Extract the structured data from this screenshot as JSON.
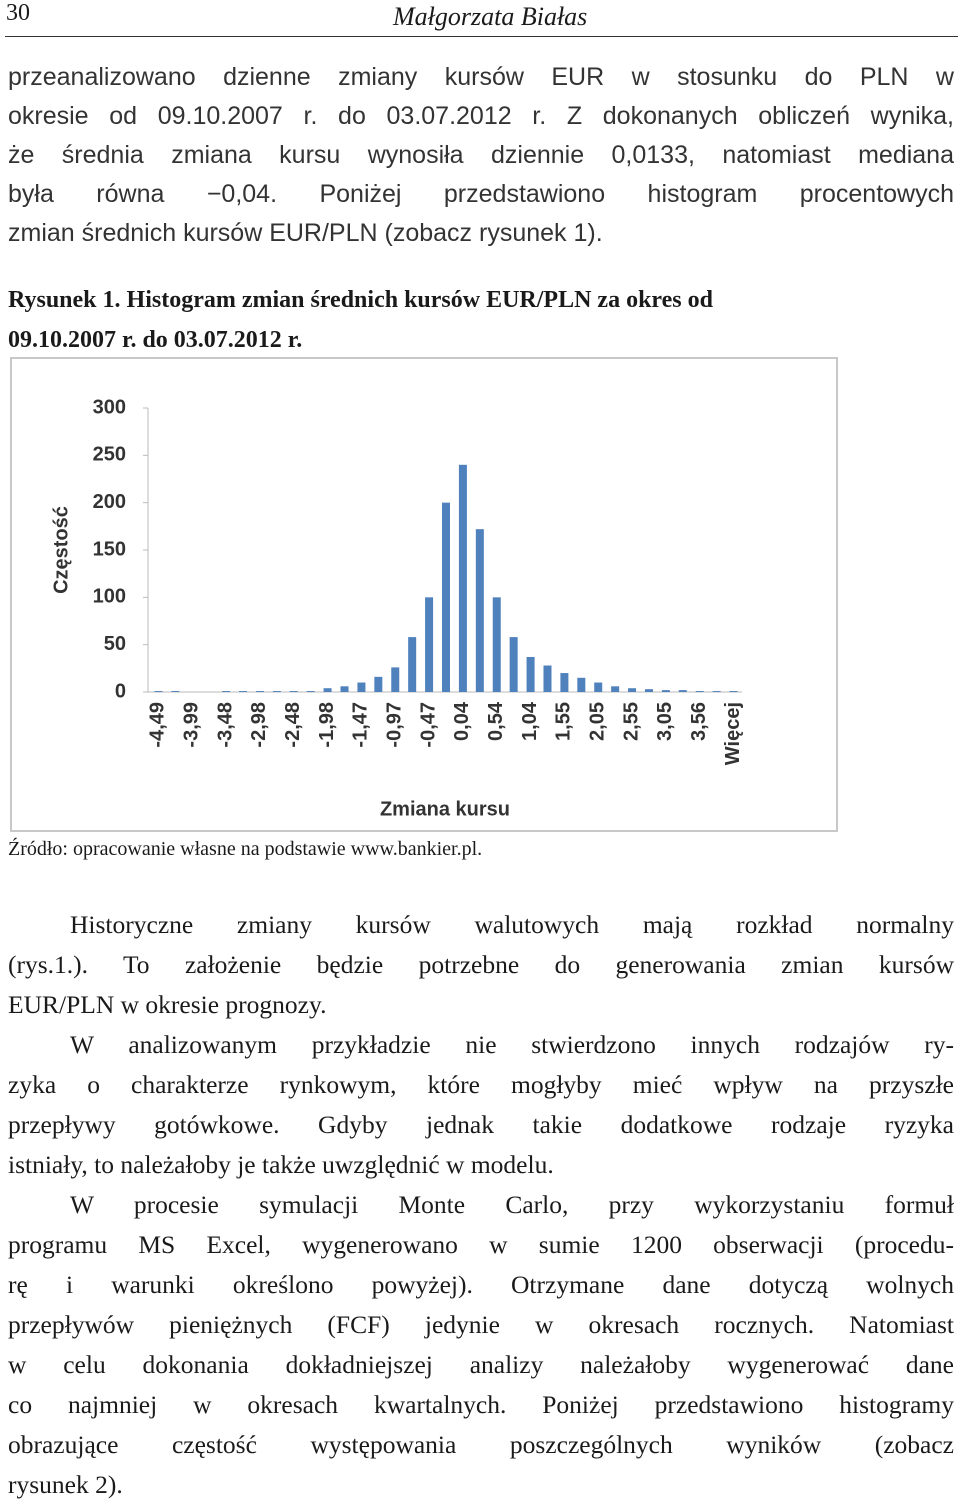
{
  "header": {
    "page_number": "30",
    "author": "Małgorzata Białas"
  },
  "intro": {
    "lines": [
      "przeanalizowano dzienne zmiany kursów EUR w stosunku do PLN w",
      "okresie od 09.10.2007 r. do 03.07.2012 r. Z dokonanych obliczeń wynika,",
      "że średnia zmiana kursu wynosiła dziennie 0,0133, natomiast mediana",
      "była równa −0,04. Poniżej przedstawiono histogram procentowych",
      "zmian średnich kursów EUR/PLN (zobacz rysunek 1)."
    ]
  },
  "figure": {
    "caption": [
      "Rysunek 1. Histogram zmian średnich kursów EUR/PLN za okres od",
      "09.10.2007 r. do 03.07.2012 r."
    ],
    "source": "Źródło: opracowanie własne na podstawie www.bankier.pl."
  },
  "chart_data": {
    "type": "bar",
    "y_label": "Częstość",
    "x_label": "Zmiana kursu",
    "color": "#4f81bd",
    "categories": [
      "-4,49",
      null,
      "-3,99",
      null,
      "-3,48",
      null,
      "-2,98",
      null,
      "-2,48",
      null,
      "-1,98",
      null,
      "-1,47",
      null,
      "-0,97",
      null,
      "-0,47",
      null,
      "0,04",
      null,
      "0,54",
      null,
      "1,04",
      null,
      "1,55",
      null,
      "2,05",
      null,
      "2,55",
      null,
      "3,05",
      null,
      "3,56",
      null,
      "Więcej"
    ],
    "values": [
      1,
      1,
      0,
      0,
      1,
      1,
      1,
      1,
      1,
      1,
      4,
      6,
      10,
      16,
      26,
      58,
      100,
      200,
      240,
      172,
      100,
      58,
      37,
      28,
      20,
      15,
      10,
      6,
      4,
      3,
      2,
      2,
      1,
      1,
      1
    ],
    "ylim": [
      0,
      300
    ],
    "yticks": [
      0,
      50,
      100,
      150,
      200,
      250,
      300
    ],
    "grid": false
  },
  "body": {
    "paragraphs": [
      [
        "Historyczne zmiany kursów walutowych mają rozkład normalny",
        "(rys.1.). To założenie będzie potrzebne do generowania zmian kursów",
        "EUR/PLN w okresie prognozy."
      ],
      [
        "W analizowanym przykładzie nie stwierdzono innych rodzajów ry-",
        "zyka o charakterze rynkowym, które mogłyby mieć wpływ na przyszłe",
        "przepływy gotówkowe. Gdyby jednak takie dodatkowe rodzaje ryzyka",
        "istniały, to należałoby je także uwzględnić w modelu."
      ],
      [
        "W procesie symulacji Monte Carlo, przy wykorzystaniu formuł",
        "programu MS Excel, wygenerowano w sumie 1200 obserwacji (procedu-",
        "rę i warunki określono powyżej). Otrzymane dane dotyczą wolnych",
        "przepływów pieniężnych (FCF) jedynie w okresach rocznych. Natomiast",
        "w celu dokonania dokładniejszej analizy należałoby wygenerować dane",
        "co najmniej w okresach kwartalnych. Poniżej przedstawiono histogramy",
        "obrazujące częstość występowania poszczególnych wyników (zobacz",
        "rysunek 2)."
      ]
    ]
  }
}
